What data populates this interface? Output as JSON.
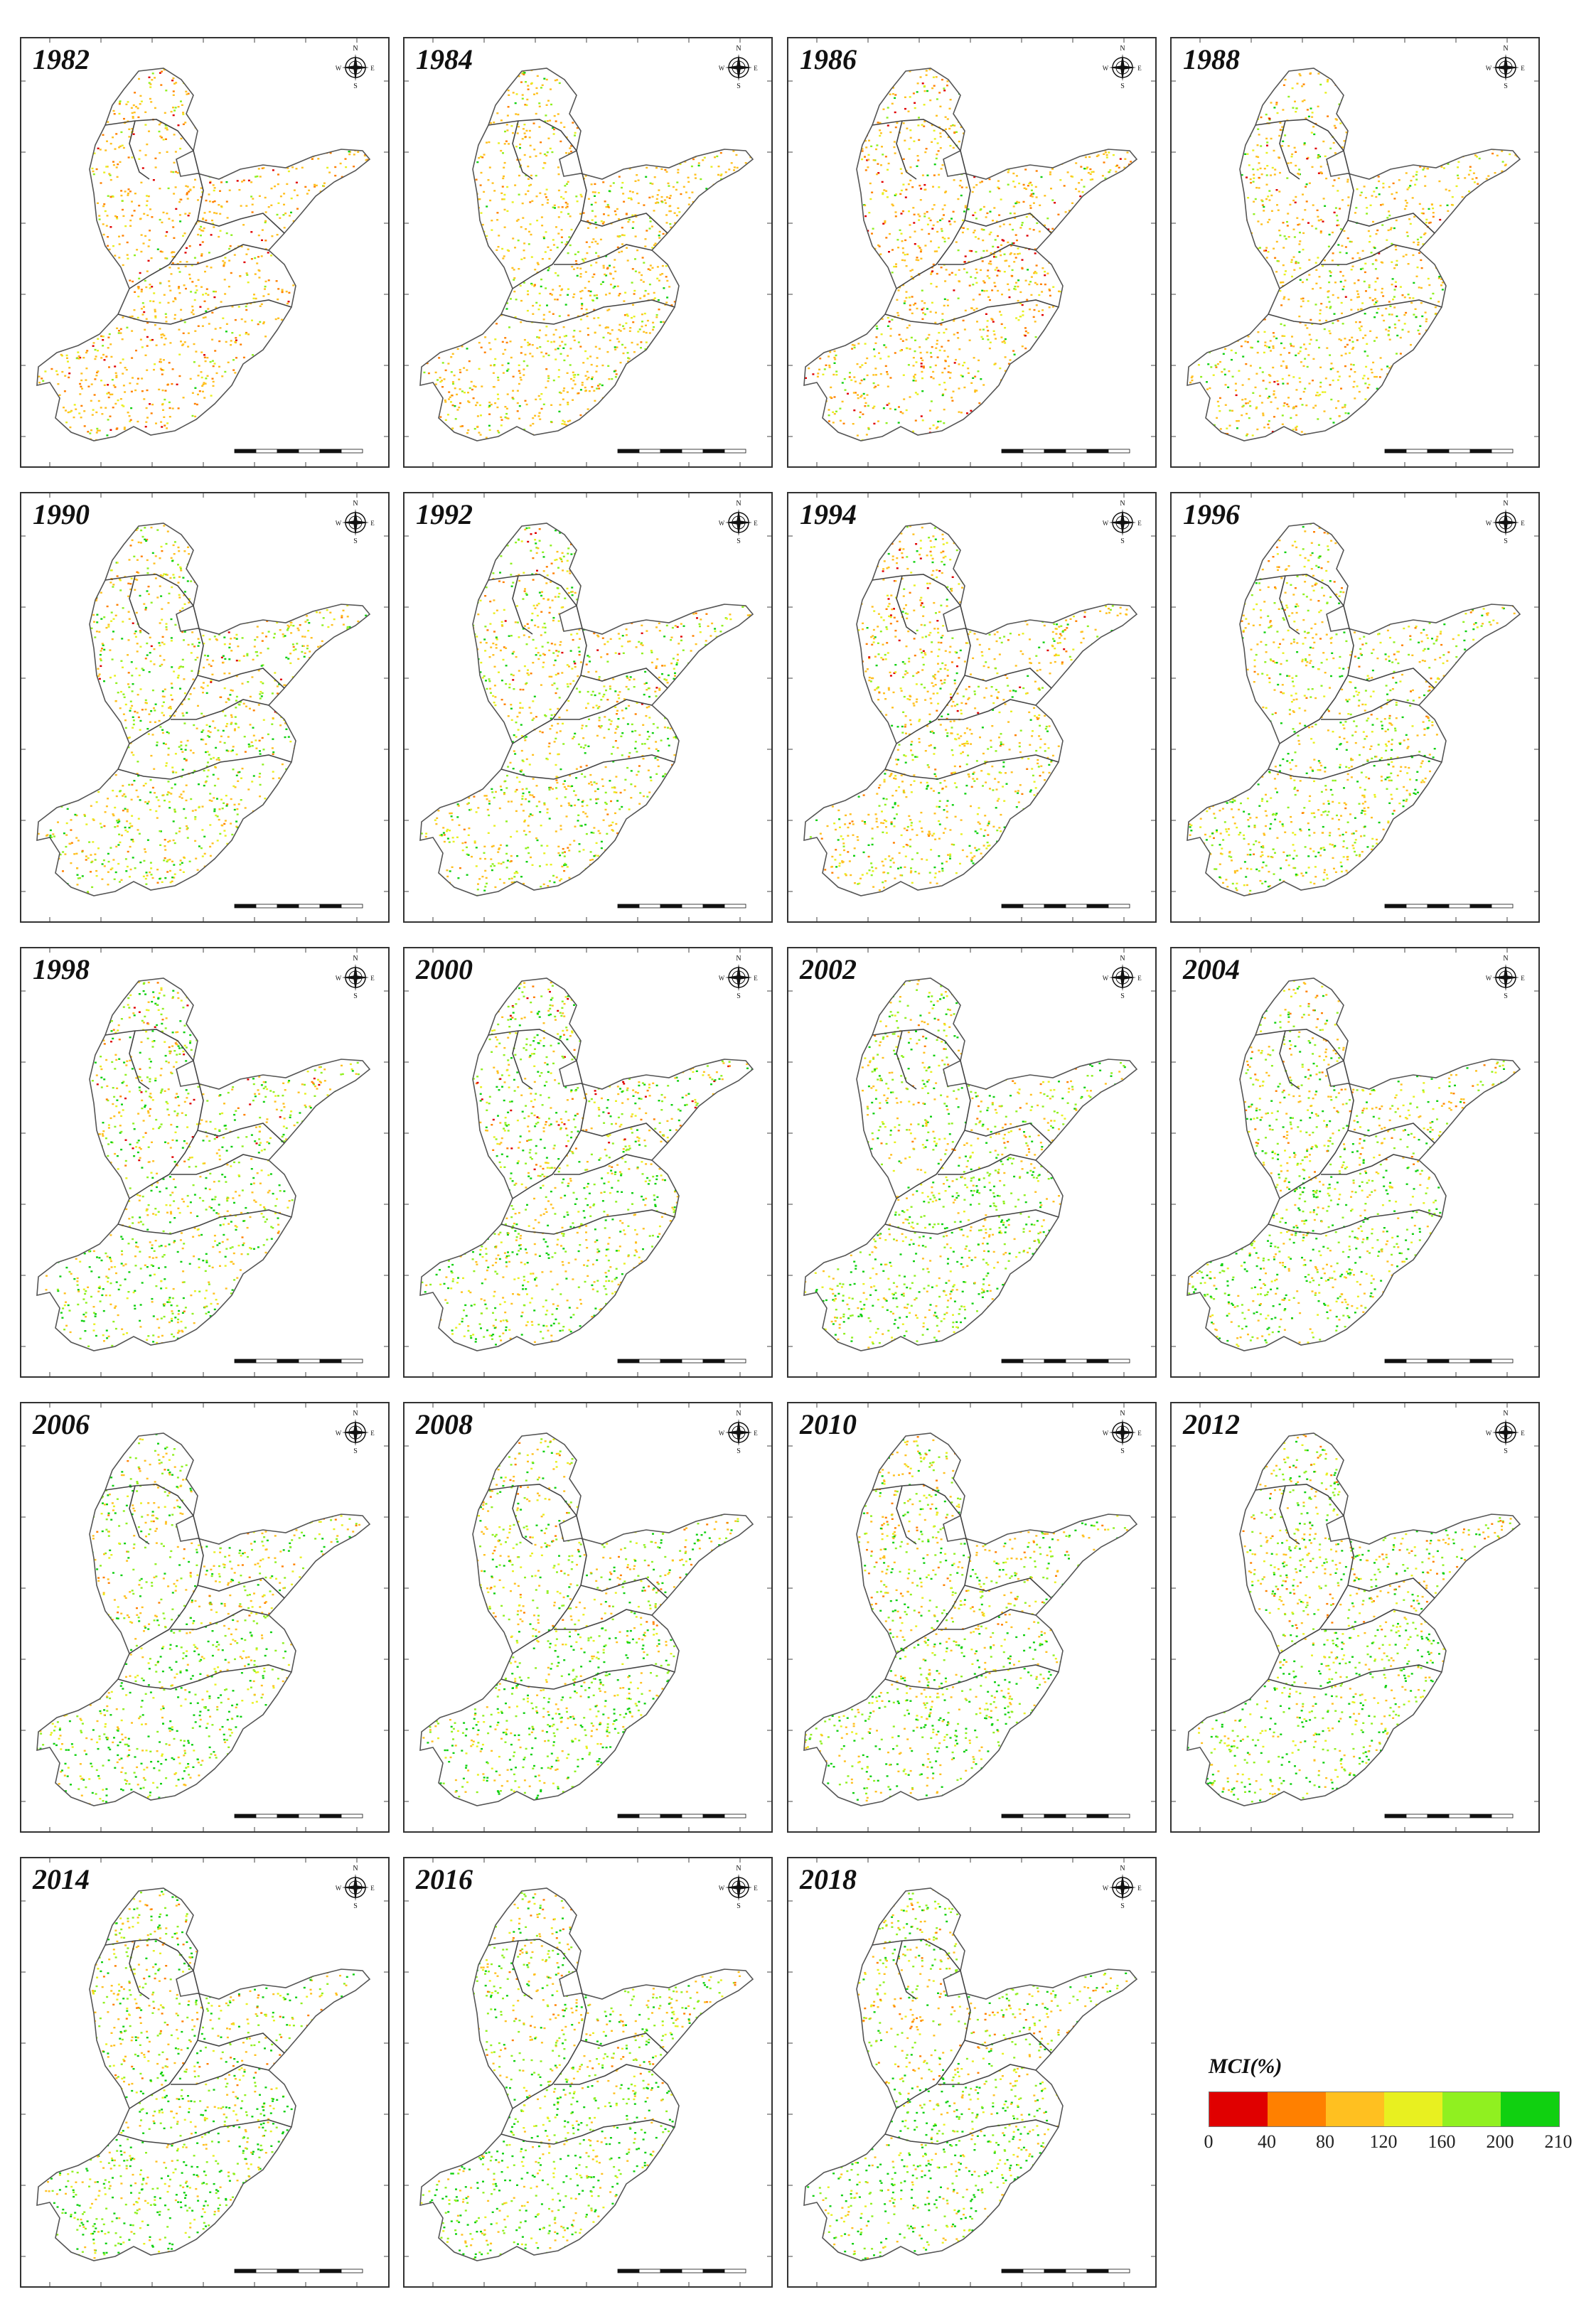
{
  "panels": [
    {
      "year": "1982",
      "mix": [
        0.06,
        0.18,
        0.56,
        0.1,
        0.08,
        0.02
      ]
    },
    {
      "year": "1984",
      "mix": [
        0.0,
        0.12,
        0.58,
        0.14,
        0.12,
        0.04
      ]
    },
    {
      "year": "1986",
      "mix": [
        0.06,
        0.16,
        0.52,
        0.12,
        0.1,
        0.04
      ]
    },
    {
      "year": "1988",
      "mix": [
        0.03,
        0.12,
        0.5,
        0.15,
        0.14,
        0.06
      ]
    },
    {
      "year": "1990",
      "mix": [
        0.01,
        0.08,
        0.4,
        0.15,
        0.22,
        0.14
      ]
    },
    {
      "year": "1992",
      "mix": [
        0.02,
        0.08,
        0.4,
        0.15,
        0.2,
        0.15
      ]
    },
    {
      "year": "1994",
      "mix": [
        0.02,
        0.08,
        0.48,
        0.16,
        0.16,
        0.1
      ]
    },
    {
      "year": "1996",
      "mix": [
        0.0,
        0.06,
        0.4,
        0.18,
        0.2,
        0.16
      ]
    },
    {
      "year": "1998",
      "mix": [
        0.01,
        0.05,
        0.3,
        0.14,
        0.26,
        0.24
      ]
    },
    {
      "year": "2000",
      "mix": [
        0.01,
        0.05,
        0.3,
        0.14,
        0.26,
        0.24
      ]
    },
    {
      "year": "2002",
      "mix": [
        0.0,
        0.04,
        0.3,
        0.14,
        0.28,
        0.24
      ]
    },
    {
      "year": "2004",
      "mix": [
        0.0,
        0.04,
        0.32,
        0.14,
        0.26,
        0.24
      ]
    },
    {
      "year": "2006",
      "mix": [
        0.0,
        0.03,
        0.3,
        0.14,
        0.28,
        0.25
      ]
    },
    {
      "year": "2008",
      "mix": [
        0.0,
        0.03,
        0.3,
        0.15,
        0.28,
        0.24
      ]
    },
    {
      "year": "2010",
      "mix": [
        0.0,
        0.04,
        0.32,
        0.14,
        0.27,
        0.23
      ]
    },
    {
      "year": "2012",
      "mix": [
        0.0,
        0.03,
        0.3,
        0.14,
        0.28,
        0.25
      ]
    },
    {
      "year": "2014",
      "mix": [
        0.0,
        0.03,
        0.28,
        0.14,
        0.29,
        0.26
      ]
    },
    {
      "year": "2016",
      "mix": [
        0.0,
        0.03,
        0.28,
        0.14,
        0.29,
        0.26
      ]
    },
    {
      "year": "2018",
      "mix": [
        0.0,
        0.03,
        0.3,
        0.14,
        0.28,
        0.25
      ]
    }
  ],
  "compass": {
    "n": "N",
    "s": "S",
    "e": "E",
    "w": "W"
  },
  "legend": {
    "title": "MCI(%)",
    "colors": [
      "#e00000",
      "#ff8000",
      "#ffc020",
      "#e8f020",
      "#90f020",
      "#10d010"
    ],
    "labels": [
      "0",
      "40",
      "80",
      "120",
      "160",
      "200",
      "210"
    ]
  }
}
